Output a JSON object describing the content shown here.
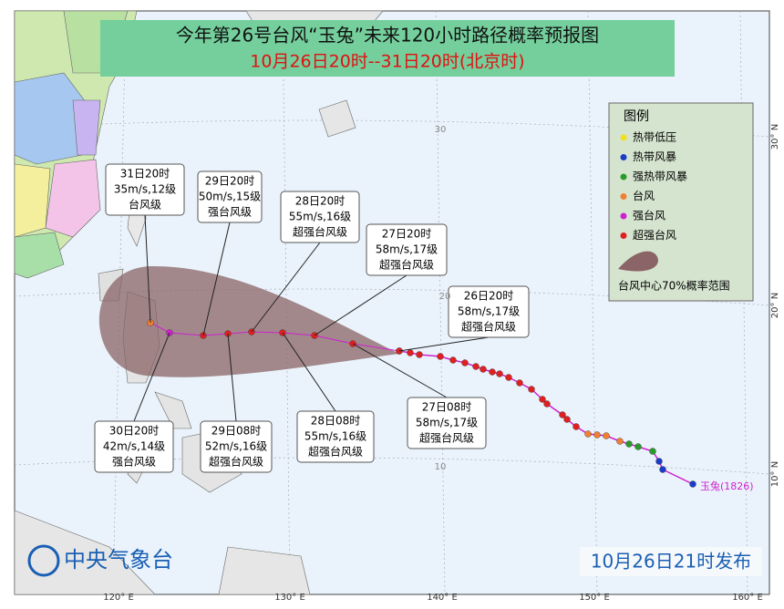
{
  "header": {
    "title": "今年第26号台风“玉兔”未来120小时路径概率预报图",
    "subtitle": "10月26日20时--31日20时(北京时)"
  },
  "legend": {
    "title": "图例",
    "items": [
      {
        "label": "热带低压",
        "color": "#f0e020"
      },
      {
        "label": "热带风暴",
        "color": "#1a3cc8"
      },
      {
        "label": "强热带风暴",
        "color": "#2a9a2a"
      },
      {
        "label": "台风",
        "color": "#f08030"
      },
      {
        "label": "强台风",
        "color": "#d020d0"
      },
      {
        "label": "超强台风",
        "color": "#e02020"
      }
    ],
    "cone_label": "台风中心70%概率范围"
  },
  "callouts": [
    {
      "time": "31日20时",
      "wind": "35m/s,12级",
      "grade": "台风级"
    },
    {
      "time": "29日20时",
      "wind": "50m/s,15级",
      "grade": "强台风级"
    },
    {
      "time": "28日20时",
      "wind": "55m/s,16级",
      "grade": "超强台风级"
    },
    {
      "time": "27日20时",
      "wind": "58m/s,17级",
      "grade": "超强台风级"
    },
    {
      "time": "26日20时",
      "wind": "58m/s,17级",
      "grade": "超强台风级"
    },
    {
      "time": "30日20时",
      "wind": "42m/s,14级",
      "grade": "强台风级"
    },
    {
      "time": "29日08时",
      "wind": "52m/s,16级",
      "grade": "超强台风级"
    },
    {
      "time": "28日08时",
      "wind": "55m/s,16级",
      "grade": "超强台风级"
    },
    {
      "time": "27日08时",
      "wind": "58m/s,17级",
      "grade": "超强台风级"
    }
  ],
  "typhoon_label": "玉兔(1826)",
  "axis": {
    "lon_labels": [
      "120° E",
      "130° E",
      "140° E",
      "150° E",
      "160° E"
    ],
    "lat_labels": [
      "30° N",
      "20° N",
      "10° N"
    ],
    "grid_labels": [
      "30",
      "20",
      "10"
    ]
  },
  "footer": {
    "agency": "中央气象台",
    "issued": "10月26日21时发布"
  }
}
